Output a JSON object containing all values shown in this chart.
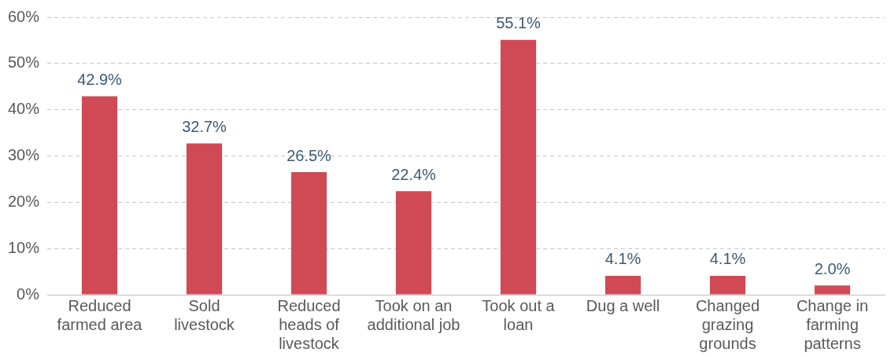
{
  "chart_data": {
    "type": "bar",
    "categories": [
      "Reduced farmed area",
      "Sold livestock",
      "Reduced heads of livestock",
      "Took on an additional job",
      "Took out a loan",
      "Dug a well",
      "Changed grazing grounds",
      "Change in farming patterns"
    ],
    "values": [
      42.9,
      32.7,
      26.5,
      22.4,
      55.1,
      4.1,
      4.1,
      2.0
    ],
    "value_labels": [
      "42.9%",
      "32.7%",
      "26.5%",
      "22.4%",
      "55.1%",
      "4.1%",
      "4.1%",
      "2.0%"
    ],
    "color": "#d04a55",
    "ylim": [
      0,
      60
    ],
    "yticks": [
      {
        "value": 0,
        "label": "0%"
      },
      {
        "value": 10,
        "label": "10%"
      },
      {
        "value": 20,
        "label": "20%"
      },
      {
        "value": 30,
        "label": "30%"
      },
      {
        "value": 40,
        "label": "40%"
      },
      {
        "value": 50,
        "label": "50%"
      },
      {
        "value": 60,
        "label": "60%"
      }
    ],
    "grid": "y"
  }
}
